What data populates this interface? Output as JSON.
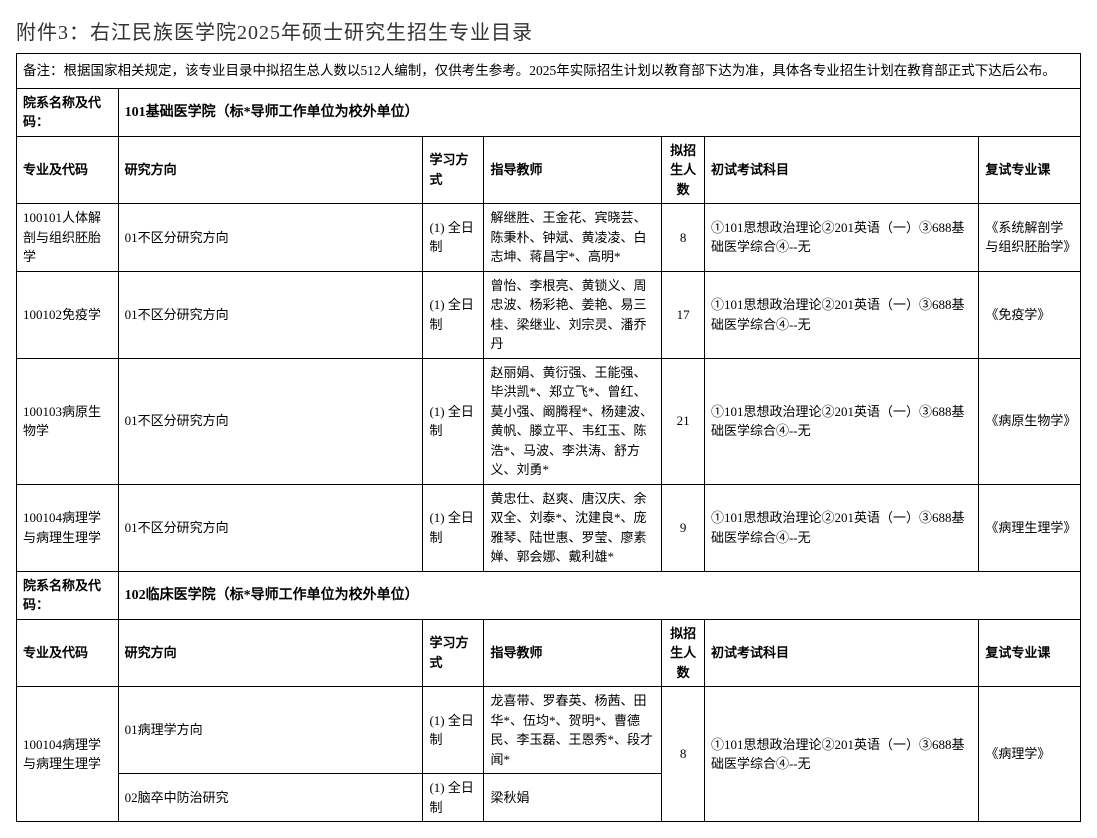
{
  "title": "附件3：右江民族医学院2025年硕士研究生招生专业目录",
  "note": "备注：根据国家相关规定，该专业目录中拟招生总人数以512人编制，仅供考生参考。2025年实际招生计划以教育部下达为准，具体各专业招生计划在教育部正式下达后公布。",
  "dept_label": "院系名称及代码：",
  "cols": {
    "major": "专业及代码",
    "direction": "研究方向",
    "mode": "学习方式",
    "advisor": "指导教师",
    "quota": "拟招生人数",
    "exam": "初试考试科目",
    "reexam": "复试专业课"
  },
  "dept1": {
    "name": "101基础医学院（标*导师工作单位为校外单位）",
    "rows": [
      {
        "major": "100101人体解剖与组织胚胎学",
        "direction": "01不区分研究方向",
        "mode": "(1) 全日制",
        "advisor": "解继胜、王金花、宾晓芸、陈秉朴、钟斌、黄凌凌、白志坤、蒋昌宇*、高明*",
        "quota": "8",
        "exam": "①101思想政治理论②201英语（一）③688基础医学综合④--无",
        "reexam": "《系统解剖学与组织胚胎学》"
      },
      {
        "major": "100102免疫学",
        "direction": "01不区分研究方向",
        "mode": "(1) 全日制",
        "advisor": "曾怡、李根亮、黄锁义、周忠波、杨彩艳、姜艳、易三桂、梁继业、刘宗灵、潘乔丹",
        "quota": "17",
        "exam": "①101思想政治理论②201英语（一）③688基础医学综合④--无",
        "reexam": "《免疫学》"
      },
      {
        "major": "100103病原生物学",
        "direction": "01不区分研究方向",
        "mode": "(1) 全日制",
        "advisor": "赵丽娟、黄衍强、王能强、毕洪凯*、郑立飞*、曾红、莫小强、阚腾程*、杨建波、黄帆、滕立平、韦红玉、陈浩*、马波、李洪涛、舒方义、刘勇*",
        "quota": "21",
        "exam": "①101思想政治理论②201英语（一）③688基础医学综合④--无",
        "reexam": "《病原生物学》"
      },
      {
        "major": "100104病理学与病理生理学",
        "direction": "01不区分研究方向",
        "mode": "(1) 全日制",
        "advisor": "黄忠仕、赵爽、唐汉庆、余双全、刘泰*、沈建良*、庞雅琴、陆世惠、罗莹、廖素婵、郭会娜、戴利雄*",
        "quota": "9",
        "exam": "①101思想政治理论②201英语（一）③688基础医学综合④--无",
        "reexam": "《病理生理学》"
      }
    ]
  },
  "dept2": {
    "name": "102临床医学院（标*导师工作单位为校外单位）",
    "row1": {
      "major": "100104病理学与病理生理学",
      "direction": "01病理学方向",
      "mode": "(1) 全日制",
      "advisor": "龙喜带、罗春英、杨茜、田华*、伍均*、贺明*、曹德民、李玉磊、王恩秀*、段才闻*",
      "quota": "8",
      "exam": "①101思想政治理论②201英语（一）③688基础医学综合④--无",
      "reexam": "《病理学》"
    },
    "row2": {
      "direction": "02脑卒中防治研究",
      "mode": "(1) 全日制",
      "advisor": "梁秋娟"
    }
  }
}
